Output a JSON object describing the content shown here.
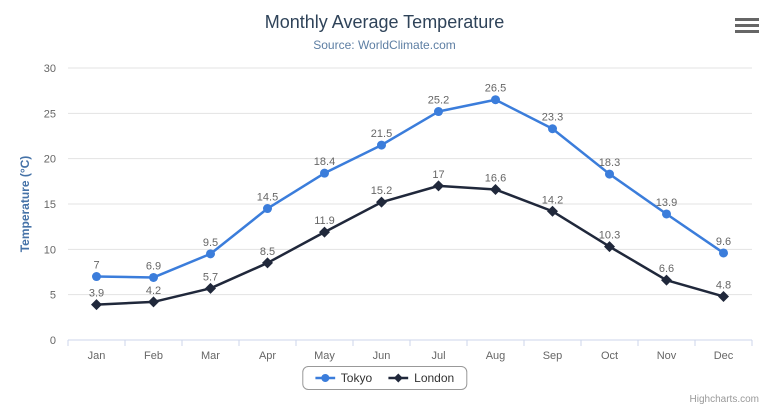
{
  "chart": {
    "title": "Monthly Average Temperature",
    "subtitle": "Source: WorldClimate.com",
    "credits": "Highcharts.com"
  },
  "chart_data": {
    "type": "line",
    "title": "Monthly Average Temperature",
    "subtitle": "Source: WorldClimate.com",
    "categories": [
      "Jan",
      "Feb",
      "Mar",
      "Apr",
      "May",
      "Jun",
      "Jul",
      "Aug",
      "Sep",
      "Oct",
      "Nov",
      "Dec"
    ],
    "series": [
      {
        "name": "Tokyo",
        "marker": "circle",
        "color": "#3B7DDB",
        "values": [
          7,
          6.9,
          9.5,
          14.5,
          18.4,
          21.5,
          25.2,
          26.5,
          23.3,
          18.3,
          13.9,
          9.6
        ]
      },
      {
        "name": "London",
        "marker": "diamond",
        "color": "#20283B",
        "values": [
          3.9,
          4.2,
          5.7,
          8.5,
          11.9,
          15.2,
          17,
          16.6,
          14.2,
          10.3,
          6.6,
          4.8
        ]
      }
    ],
    "xlabel": "",
    "ylabel": "Temperature (°C)",
    "ylim": [
      0,
      30
    ],
    "ytick_step": 5,
    "grid": true,
    "data_labels": true,
    "legend_position": "bottom-center"
  },
  "legend": {
    "items": [
      {
        "label": "Tokyo"
      },
      {
        "label": "London"
      }
    ]
  },
  "colors": {
    "title-color": "#2F4359",
    "subtitle-color": "#5D7EA3",
    "yaxis-title-color": "#4572A7",
    "label-color": "#666666",
    "grid-color": "#E3E3E3",
    "axis-color": "#CCD6EB",
    "legend-border": "#999999",
    "legend-text": "#333333",
    "credits-color": "#999999",
    "icon-color": "#666666"
  }
}
